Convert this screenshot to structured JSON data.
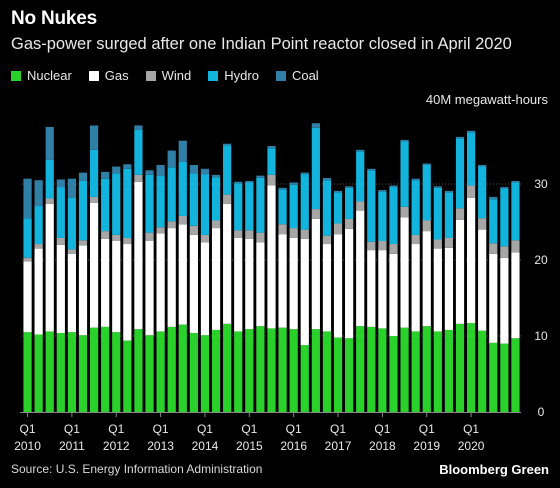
{
  "header": {
    "title": "No Nukes",
    "subtitle": "Gas-power surged after one Indian Point reactor closed in April 2020"
  },
  "legend": [
    {
      "label": "Nuclear",
      "color": "#2ad12a"
    },
    {
      "label": "Gas",
      "color": "#ffffff"
    },
    {
      "label": "Wind",
      "color": "#a6a6a6"
    },
    {
      "label": "Hydro",
      "color": "#12b3dc"
    },
    {
      "label": "Coal",
      "color": "#2f7fa6"
    }
  ],
  "unit_label": "40M megawatt-hours",
  "footer": {
    "source": "Source: U.S. Energy Information Administration",
    "brand": "Bloomberg Green"
  },
  "chart_data": {
    "type": "bar",
    "stacked": true,
    "ylim": [
      0,
      40
    ],
    "yticks": [
      0,
      10,
      20,
      30
    ],
    "grid": true,
    "legend_position": "top-left",
    "x_quarter_label": "Q1",
    "year_labels": [
      "2010",
      "2011",
      "2012",
      "2013",
      "2014",
      "2015",
      "2016",
      "2017",
      "2018",
      "2019",
      "2020"
    ],
    "series": [
      {
        "name": "Nuclear",
        "color": "#2ad12a",
        "values": [
          10.5,
          10.2,
          10.6,
          10.4,
          10.5,
          10.1,
          11.1,
          11.2,
          10.5,
          9.4,
          10.9,
          10.1,
          10.6,
          11.2,
          11.5,
          10.4,
          10.1,
          10.8,
          11.6,
          10.6,
          10.9,
          11.3,
          11.0,
          11.1,
          10.9,
          8.8,
          10.9,
          10.6,
          9.8,
          9.7,
          11.3,
          11.2,
          11.0,
          10.0,
          11.1,
          10.6,
          11.3,
          10.6,
          10.8,
          11.6,
          11.7,
          10.7,
          9.1,
          9.0,
          9.7
        ]
      },
      {
        "name": "Gas",
        "color": "#ffffff",
        "values": [
          9.3,
          11.3,
          16.8,
          11.6,
          10.3,
          11.8,
          16.4,
          11.6,
          12.0,
          12.7,
          19.4,
          12.4,
          12.9,
          13.0,
          13.2,
          12.9,
          12.2,
          13.4,
          15.8,
          12.3,
          11.9,
          11.0,
          18.8,
          12.3,
          12.0,
          14.0,
          14.5,
          11.5,
          13.6,
          14.4,
          15.2,
          10.1,
          10.3,
          10.8,
          14.5,
          11.5,
          12.5,
          10.9,
          10.8,
          13.7,
          16.5,
          13.3,
          11.7,
          11.3,
          11.3
        ]
      },
      {
        "name": "Wind",
        "color": "#a6a6a6",
        "values": [
          0.5,
          0.6,
          0.7,
          0.9,
          0.6,
          0.7,
          0.8,
          1.0,
          0.8,
          0.8,
          0.9,
          1.1,
          0.8,
          0.9,
          1.1,
          1.2,
          1.0,
          1.0,
          1.2,
          1.0,
          1.1,
          1.3,
          1.4,
          1.3,
          1.3,
          1.2,
          1.3,
          1.1,
          1.4,
          1.3,
          1.2,
          1.1,
          1.2,
          1.3,
          1.4,
          1.2,
          1.4,
          1.2,
          1.3,
          1.5,
          1.6,
          1.5,
          1.4,
          1.5,
          1.6
        ]
      },
      {
        "name": "Hydro",
        "color": "#12b3dc",
        "values": [
          5.2,
          5.0,
          5.1,
          6.7,
          6.8,
          7.8,
          6.2,
          6.9,
          8.1,
          9.1,
          5.9,
          7.6,
          6.8,
          7.1,
          7.1,
          6.9,
          8.0,
          5.7,
          6.5,
          6.2,
          6.3,
          7.2,
          3.5,
          4.6,
          5.7,
          7.3,
          10.7,
          7.3,
          4.1,
          4.1,
          6.6,
          9.4,
          6.5,
          7.5,
          8.6,
          7.2,
          7.3,
          6.8,
          6.0,
          9.2,
          7.0,
          6.8,
          5.8,
          7.6,
          7.6
        ]
      },
      {
        "name": "Coal",
        "color": "#2f7fa6",
        "values": [
          5.2,
          3.4,
          4.3,
          1.0,
          2.5,
          1.1,
          3.2,
          0.9,
          0.9,
          0.6,
          0.6,
          0.6,
          1.4,
          2.2,
          2.8,
          1.1,
          0.7,
          0.3,
          0.2,
          0.2,
          0.2,
          0.3,
          0.3,
          0.2,
          0.3,
          0.2,
          0.6,
          0.3,
          0.2,
          0.2,
          0.2,
          0.2,
          0.2,
          0.2,
          0.2,
          0.2,
          0.2,
          0.2,
          0.2,
          0.2,
          0.2,
          0.2,
          0.3,
          0.2,
          0.2
        ]
      }
    ]
  }
}
